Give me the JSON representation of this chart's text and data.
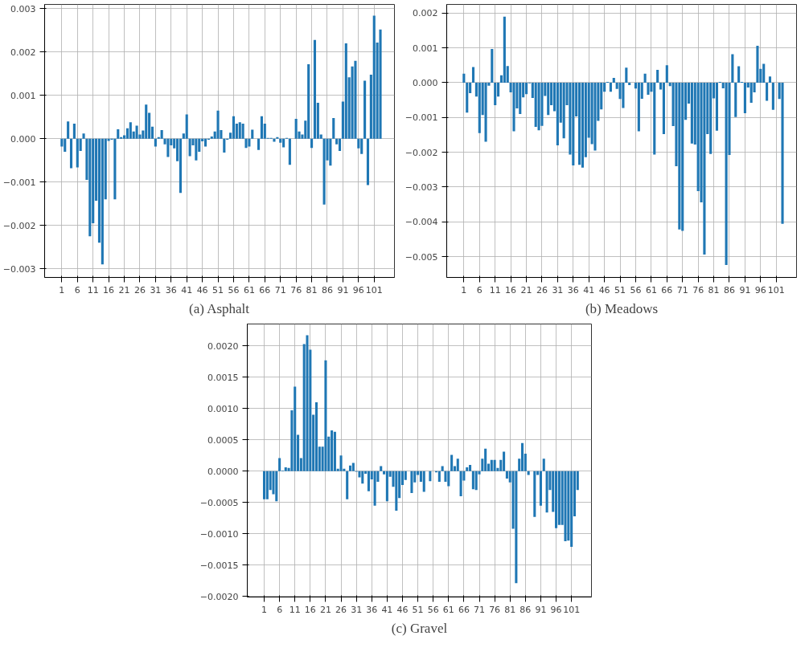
{
  "chart_data": [
    {
      "type": "bar",
      "title": "(a) Asphalt",
      "grid": true,
      "xlim": [
        -4.5,
        107.5
      ],
      "ylim": [
        -0.0032,
        0.0031
      ],
      "xticks": [
        1,
        6,
        11,
        16,
        21,
        26,
        31,
        36,
        41,
        46,
        51,
        56,
        61,
        66,
        71,
        76,
        81,
        86,
        91,
        96,
        101
      ],
      "yticks": [
        {
          "value": -0.003,
          "label": "−0.003"
        },
        {
          "value": -0.002,
          "label": "−0.002"
        },
        {
          "value": -0.001,
          "label": "−0.001"
        },
        {
          "value": 0,
          "label": "0.000"
        },
        {
          "value": 0.001,
          "label": "0.001"
        },
        {
          "value": 0.002,
          "label": "0.002"
        },
        {
          "value": 0.003,
          "label": "0.003"
        }
      ],
      "x": [
        1,
        2,
        3,
        4,
        5,
        6,
        7,
        8,
        9,
        10,
        11,
        12,
        13,
        14,
        15,
        16,
        17,
        18,
        19,
        20,
        21,
        22,
        23,
        24,
        25,
        26,
        27,
        28,
        29,
        30,
        31,
        32,
        33,
        34,
        35,
        36,
        37,
        38,
        39,
        40,
        41,
        42,
        43,
        44,
        45,
        46,
        47,
        48,
        49,
        50,
        51,
        52,
        53,
        54,
        55,
        56,
        57,
        58,
        59,
        60,
        61,
        62,
        63,
        64,
        65,
        66,
        67,
        68,
        69,
        70,
        71,
        72,
        73,
        74,
        75,
        76,
        77,
        78,
        79,
        80,
        81,
        82,
        83,
        84,
        85,
        86,
        87,
        88,
        89,
        90,
        91,
        92,
        93,
        94,
        95,
        96,
        97,
        98,
        99,
        100,
        101,
        102,
        103
      ],
      "series": [
        {
          "color": "#1f77b4",
          "values": [
            -0.00018,
            -0.0003,
            0.0004,
            -0.00068,
            0.00035,
            -0.00066,
            -0.00028,
            0.00012,
            -0.00095,
            -0.00225,
            -0.00195,
            -0.00143,
            -0.0024,
            -0.0029,
            -0.0014,
            -5e-05,
            -2e-05,
            -0.0014,
            0.00022,
            4e-05,
            8e-05,
            0.00024,
            0.00038,
            0.00017,
            0.0003,
            0.0001,
            0.00019,
            0.00079,
            0.0006,
            0.00028,
            -0.00018,
            4e-05,
            0.0002,
            -0.00013,
            -0.00042,
            -0.00015,
            -0.00022,
            -0.00052,
            -0.00125,
            0.00012,
            0.00056,
            -0.0004,
            -0.00015,
            -0.0005,
            -0.0003,
            -6e-05,
            -0.00018,
            -2e-05,
            5e-05,
            0.00017,
            0.00065,
            0.0002,
            -0.00032,
            -2e-05,
            0.00014,
            0.00052,
            0.00035,
            0.00038,
            0.00035,
            -0.00021,
            -0.00018,
            0.00021,
            0.0,
            -0.00026,
            0.00052,
            0.00035,
            2e-05,
            2e-05,
            -7e-05,
            4e-05,
            -9e-05,
            -0.0002,
            2e-05,
            -0.0006,
            0.0,
            0.00046,
            0.00017,
            0.0001,
            0.00042,
            0.00172,
            -0.00021,
            0.00228,
            0.00083,
            0.0001,
            -0.00152,
            -0.0005,
            -0.00062,
            0.00048,
            -0.00013,
            -0.00028,
            0.00086,
            0.0022,
            0.00142,
            0.00167,
            0.0018,
            -0.00022,
            -0.00035,
            0.00134,
            -0.00107,
            0.00148,
            0.00284,
            0.00222,
            0.00252
          ]
        }
      ]
    },
    {
      "type": "bar",
      "title": "(b) Meadows",
      "grid": true,
      "xlim": [
        -4.5,
        107.5
      ],
      "ylim": [
        -0.0056,
        0.00225
      ],
      "xticks": [
        1,
        6,
        11,
        16,
        21,
        26,
        31,
        36,
        41,
        46,
        51,
        56,
        61,
        66,
        71,
        76,
        81,
        86,
        91,
        96,
        101
      ],
      "yticks": [
        {
          "value": -0.005,
          "label": "−0.005"
        },
        {
          "value": -0.004,
          "label": "−0.004"
        },
        {
          "value": -0.003,
          "label": "−0.003"
        },
        {
          "value": -0.002,
          "label": "−0.002"
        },
        {
          "value": -0.001,
          "label": "−0.001"
        },
        {
          "value": 0,
          "label": "0.000"
        },
        {
          "value": 0.001,
          "label": "0.001"
        },
        {
          "value": 0.002,
          "label": "0.002"
        }
      ],
      "x": [
        1,
        2,
        3,
        4,
        5,
        6,
        7,
        8,
        9,
        10,
        11,
        12,
        13,
        14,
        15,
        16,
        17,
        18,
        19,
        20,
        21,
        22,
        23,
        24,
        25,
        26,
        27,
        28,
        29,
        30,
        31,
        32,
        33,
        34,
        35,
        36,
        37,
        38,
        39,
        40,
        41,
        42,
        43,
        44,
        45,
        46,
        47,
        48,
        49,
        50,
        51,
        52,
        53,
        54,
        55,
        56,
        57,
        58,
        59,
        60,
        61,
        62,
        63,
        64,
        65,
        66,
        67,
        68,
        69,
        70,
        71,
        72,
        73,
        74,
        75,
        76,
        77,
        78,
        79,
        80,
        81,
        82,
        83,
        84,
        85,
        86,
        87,
        88,
        89,
        90,
        91,
        92,
        93,
        94,
        95,
        96,
        97,
        98,
        99,
        100,
        101,
        102,
        103
      ],
      "series": [
        {
          "color": "#1f77b4",
          "values": [
            0.00026,
            -0.00086,
            -0.0003,
            0.00045,
            -0.0004,
            -0.00145,
            -0.00093,
            -0.0017,
            -9e-05,
            0.00097,
            -0.00065,
            -0.0004,
            0.00021,
            0.0019,
            0.00048,
            -0.00028,
            -0.0014,
            -0.00074,
            -0.0009,
            -0.00042,
            -0.00033,
            -2e-05,
            -0.00044,
            -0.00127,
            -0.00137,
            -0.00124,
            -0.00038,
            -0.00093,
            -0.00065,
            -0.00082,
            -0.0018,
            -0.00115,
            -0.0016,
            -0.00065,
            -0.00207,
            -0.00238,
            -0.00097,
            -0.00236,
            -0.00244,
            -0.00214,
            -0.00158,
            -0.00177,
            -0.00195,
            -0.0011,
            -0.00077,
            -0.00026,
            2e-05,
            -0.00026,
            0.00014,
            -0.00018,
            -0.00047,
            -0.00073,
            0.00043,
            -7e-05,
            0.0,
            -0.00017,
            -0.0014,
            -0.00046,
            0.00026,
            -0.00035,
            -0.00026,
            -0.00207,
            0.00037,
            -0.0002,
            -0.00148,
            0.0005,
            -0.0001,
            -0.00125,
            -0.0024,
            -0.00422,
            -0.00426,
            -0.00107,
            -0.0006,
            -0.00175,
            -0.00178,
            -0.00312,
            -0.00344,
            -0.00494,
            -0.00148,
            -0.00205,
            -0.00045,
            -0.00138,
            2e-05,
            -0.00016,
            -0.00524,
            -0.00208,
            0.00082,
            -0.00099,
            0.00047,
            2e-05,
            -0.00088,
            -0.00014,
            -0.00058,
            -0.00028,
            0.00106,
            0.0004,
            0.00054,
            -0.00052,
            0.00018,
            -0.00078,
            0.0,
            -0.00047,
            -0.00406
          ]
        }
      ]
    },
    {
      "type": "bar",
      "title": "(c) Gravel",
      "grid": true,
      "xlim": [
        -4.5,
        107.5
      ],
      "ylim": [
        -0.00201,
        0.00235
      ],
      "xticks": [
        1,
        6,
        11,
        16,
        21,
        26,
        31,
        36,
        41,
        46,
        51,
        56,
        61,
        66,
        71,
        76,
        81,
        86,
        91,
        96,
        101
      ],
      "yticks": [
        {
          "value": -0.002,
          "label": "−0.0020"
        },
        {
          "value": -0.0015,
          "label": "−0.0015"
        },
        {
          "value": -0.001,
          "label": "−0.0010"
        },
        {
          "value": -0.0005,
          "label": "−0.0005"
        },
        {
          "value": 0,
          "label": "0.0000"
        },
        {
          "value": 0.0005,
          "label": "0.0005"
        },
        {
          "value": 0.001,
          "label": "0.0010"
        },
        {
          "value": 0.0015,
          "label": "0.0015"
        },
        {
          "value": 0.002,
          "label": "0.0020"
        }
      ],
      "x": [
        1,
        2,
        3,
        4,
        5,
        6,
        7,
        8,
        9,
        10,
        11,
        12,
        13,
        14,
        15,
        16,
        17,
        18,
        19,
        20,
        21,
        22,
        23,
        24,
        25,
        26,
        27,
        28,
        29,
        30,
        31,
        32,
        33,
        34,
        35,
        36,
        37,
        38,
        39,
        40,
        41,
        42,
        43,
        44,
        45,
        46,
        47,
        48,
        49,
        50,
        51,
        52,
        53,
        54,
        55,
        56,
        57,
        58,
        59,
        60,
        61,
        62,
        63,
        64,
        65,
        66,
        67,
        68,
        69,
        70,
        71,
        72,
        73,
        74,
        75,
        76,
        77,
        78,
        79,
        80,
        81,
        82,
        83,
        84,
        85,
        86,
        87,
        88,
        89,
        90,
        91,
        92,
        93,
        94,
        95,
        96,
        97,
        98,
        99,
        100,
        101,
        102,
        103
      ],
      "series": [
        {
          "color": "#1f77b4",
          "values": [
            -0.00045,
            -0.00045,
            -0.0003,
            -0.00037,
            -0.00048,
            0.00021,
            1e-05,
            6e-05,
            5e-05,
            0.00097,
            0.00135,
            0.00058,
            0.00021,
            0.00203,
            0.00217,
            0.00194,
            0.0009,
            0.0011,
            0.00039,
            0.00039,
            0.00177,
            0.00055,
            0.00065,
            0.00063,
            4e-05,
            0.00025,
            4e-05,
            -0.00045,
            9e-05,
            0.00013,
            -1e-05,
            -0.0001,
            -0.0002,
            -4e-05,
            -0.00032,
            -0.00013,
            -0.00055,
            -0.00017,
            8e-05,
            -5e-05,
            -0.00048,
            -9e-05,
            -0.00025,
            -0.00063,
            -0.00043,
            -0.00022,
            -0.00014,
            0.0,
            -0.00035,
            -0.00018,
            -6e-05,
            -0.00017,
            -0.00033,
            0.0,
            -0.00016,
            0.0,
            -2e-05,
            -0.00017,
            8e-05,
            -0.00017,
            -0.00024,
            0.00026,
            8e-05,
            0.0002,
            -0.0004,
            -0.00015,
            6e-05,
            0.0001,
            -0.00029,
            -0.0003,
            -5e-05,
            0.0002,
            0.00036,
            0.00012,
            0.00018,
            0.00018,
            5e-05,
            0.00018,
            0.00031,
            -0.00012,
            -0.00018,
            -0.00092,
            -0.00179,
            0.0002,
            0.00045,
            0.00028,
            -6e-05,
            0.0,
            -0.00073,
            -6e-05,
            -0.00055,
            0.0002,
            -0.00066,
            -0.0003,
            -0.00065,
            -0.00091,
            -0.00086,
            -0.00086,
            -0.00112,
            -0.00111,
            -0.00121,
            -0.00072,
            -0.0003
          ]
        }
      ]
    }
  ]
}
